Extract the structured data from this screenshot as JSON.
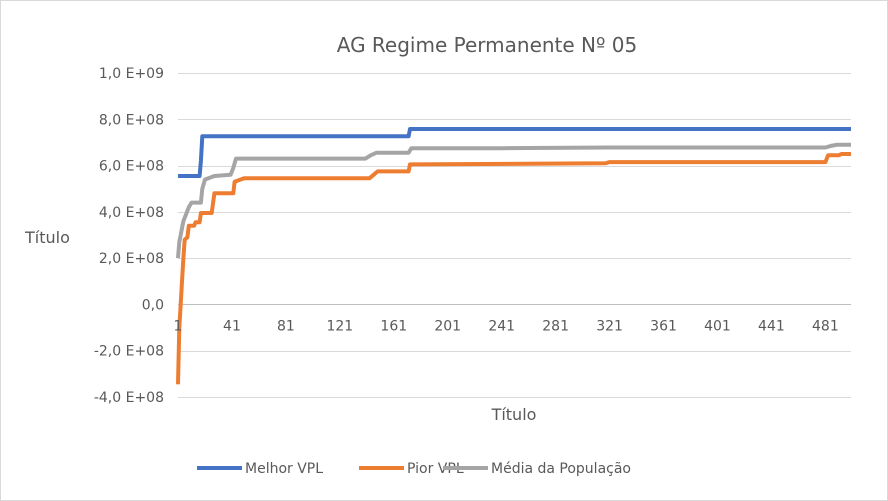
{
  "chart_data": {
    "type": "line",
    "title": "AG Regime Permanente Nº 05",
    "xlabel": "Título",
    "ylabel": "Título",
    "xlim": [
      1,
      500
    ],
    "ylim": [
      -400000000,
      1000000000
    ],
    "yticks": [
      {
        "value": 1000000000,
        "label": "1,0 E+09"
      },
      {
        "value": 800000000,
        "label": "8,0 E+08"
      },
      {
        "value": 600000000,
        "label": "6,0 E+08"
      },
      {
        "value": 400000000,
        "label": "4,0 E+08"
      },
      {
        "value": 200000000,
        "label": "2,0 E+08"
      },
      {
        "value": 0,
        "label": "0,0"
      },
      {
        "value": -200000000,
        "label": "-2,0 E+08"
      },
      {
        "value": -400000000,
        "label": "-4,0 E+08"
      }
    ],
    "xticks": [
      {
        "value": 1,
        "label": "1"
      },
      {
        "value": 41,
        "label": "41"
      },
      {
        "value": 81,
        "label": "81"
      },
      {
        "value": 121,
        "label": "121"
      },
      {
        "value": 161,
        "label": "161"
      },
      {
        "value": 201,
        "label": "201"
      },
      {
        "value": 241,
        "label": "241"
      },
      {
        "value": 281,
        "label": "281"
      },
      {
        "value": 321,
        "label": "321"
      },
      {
        "value": 361,
        "label": "361"
      },
      {
        "value": 401,
        "label": "401"
      },
      {
        "value": 441,
        "label": "441"
      },
      {
        "value": 481,
        "label": "481"
      }
    ],
    "grid": true,
    "legend": "bottom",
    "series": [
      {
        "name": "Melhor VPL",
        "color": "#4472C4",
        "points": [
          [
            1,
            555000000
          ],
          [
            17,
            555000000
          ],
          [
            18,
            620000000
          ],
          [
            19,
            727000000
          ],
          [
            172,
            727000000
          ],
          [
            173,
            758000000
          ],
          [
            500,
            758000000
          ]
        ]
      },
      {
        "name": "Pior VPL",
        "color": "#ED7D31",
        "points": [
          [
            1,
            -345000000
          ],
          [
            2,
            -100000000
          ],
          [
            3,
            0
          ],
          [
            4,
            100000000
          ],
          [
            5,
            200000000
          ],
          [
            6,
            280000000
          ],
          [
            8,
            290000000
          ],
          [
            9,
            340000000
          ],
          [
            13,
            340000000
          ],
          [
            14,
            355000000
          ],
          [
            17,
            355000000
          ],
          [
            18,
            395000000
          ],
          [
            26,
            395000000
          ],
          [
            27,
            440000000
          ],
          [
            28,
            480000000
          ],
          [
            42,
            480000000
          ],
          [
            43,
            530000000
          ],
          [
            50,
            545000000
          ],
          [
            143,
            545000000
          ],
          [
            146,
            560000000
          ],
          [
            149,
            575000000
          ],
          [
            172,
            575000000
          ],
          [
            173,
            605000000
          ],
          [
            318,
            610000000
          ],
          [
            321,
            615000000
          ],
          [
            481,
            615000000
          ],
          [
            483,
            645000000
          ],
          [
            491,
            645000000
          ],
          [
            493,
            650000000
          ],
          [
            500,
            650000000
          ]
        ]
      },
      {
        "name": "Média da População",
        "color": "#A5A5A5",
        "points": [
          [
            1,
            200000000
          ],
          [
            2,
            270000000
          ],
          [
            3,
            300000000
          ],
          [
            4,
            330000000
          ],
          [
            5,
            360000000
          ],
          [
            7,
            390000000
          ],
          [
            9,
            420000000
          ],
          [
            11,
            440000000
          ],
          [
            18,
            440000000
          ],
          [
            19,
            500000000
          ],
          [
            21,
            540000000
          ],
          [
            28,
            555000000
          ],
          [
            40,
            560000000
          ],
          [
            42,
            590000000
          ],
          [
            44,
            630000000
          ],
          [
            140,
            630000000
          ],
          [
            144,
            645000000
          ],
          [
            148,
            655000000
          ],
          [
            172,
            655000000
          ],
          [
            174,
            675000000
          ],
          [
            241,
            675000000
          ],
          [
            321,
            678000000
          ],
          [
            481,
            678000000
          ],
          [
            485,
            685000000
          ],
          [
            490,
            690000000
          ],
          [
            500,
            690000000
          ]
        ]
      }
    ]
  }
}
